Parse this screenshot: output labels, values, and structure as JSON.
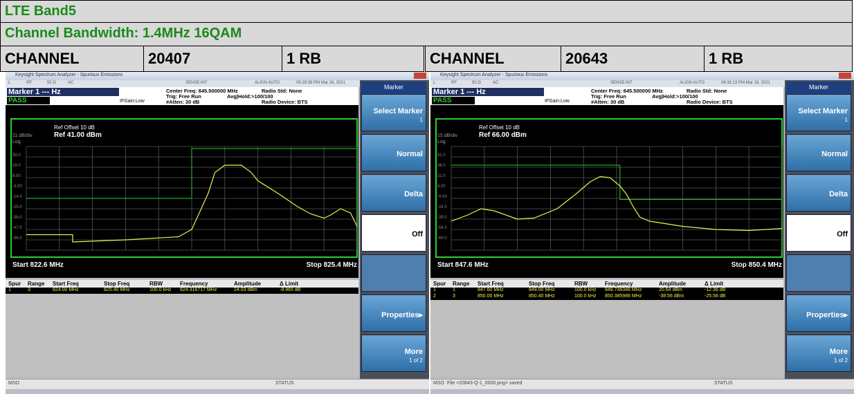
{
  "header": {
    "title": "LTE Band5",
    "subtitle": "Channel Bandwidth: 1.4MHz 16QAM",
    "cells": [
      "CHANNEL",
      "20407",
      "1 RB",
      "CHANNEL",
      "20643",
      "1 RB"
    ]
  },
  "panels": [
    {
      "window_title": "Keysight Spectrum Analyzer - Spurious Emissions",
      "toolbar": [
        "L",
        "RF",
        "50 Ω",
        "AC",
        "SENSE:INT",
        "ALIGN AUTO",
        "06:29:39 PM Mar 16, 2021"
      ],
      "marker": "Marker 1 --- Hz",
      "pass": "PASS",
      "ifgain": "IFGain:Low",
      "settings": [
        "Center Freq: 845.500000 MHz",
        "Trig: Free Run",
        "Avg|Hold:>100/100",
        "#Atten: 30 dB",
        "Radio Std: None",
        "Radio Device: BTS"
      ],
      "ref_offset": "Ref Offset 10 dB",
      "scale": "11 dB/div",
      "ref": "Ref 41.00 dBm",
      "log": "Log",
      "y_labels": [
        "30.0",
        "19.0",
        "8.00",
        "-3.00",
        "-14.0",
        "-25.0",
        "-36.0",
        "-47.0",
        "-58.0"
      ],
      "start": "Start 822.6 MHz",
      "stop": "Stop 825.4 MHz",
      "table": {
        "headers": [
          "Spur",
          "Range",
          "Start Freq",
          "Stop Freq",
          "RBW",
          "Frequency",
          "Amplitude",
          "Δ Limit"
        ],
        "rows": [
          [
            "1",
            "3",
            "824.00 MHz",
            "825.40 MHz",
            "100.0 kHz",
            "824.316717 MHz",
            "24.03 dBm",
            "-8.965 dB"
          ]
        ]
      },
      "softkeys": [
        "Marker",
        "Select Marker",
        "1",
        "Normal",
        "Delta",
        "Off",
        "Properties▸",
        "More",
        "1 of 2"
      ],
      "status": [
        "MSO",
        "STATUS"
      ]
    },
    {
      "window_title": "Keysight Spectrum Analyzer - Spurious Emissions",
      "toolbar": [
        "L",
        "RF",
        "50 Ω",
        "AC",
        "SENSE:INT",
        "ALIGN AUTO",
        "06:32:13 PM Mar 16, 2021"
      ],
      "marker": "Marker 1 --- Hz",
      "pass": "PASS",
      "ifgain": "IFGain:Low",
      "settings": [
        "Center Freq: 845.500000 MHz",
        "Trig: Free Run",
        "Avg|Hold:>100/100",
        "#Atten: 30 dB",
        "Radio Std: None",
        "Radio Device: BTS"
      ],
      "ref_offset": "Ref Offset 10 dB",
      "scale": "15 dB/div",
      "ref": "Ref 66.00 dBm",
      "log": "Log",
      "y_labels": [
        "51.0",
        "36.0",
        "21.0",
        "6.00",
        "-9.00",
        "-24.0",
        "-39.0",
        "-54.0",
        "-69.0"
      ],
      "start": "Start 847.6 MHz",
      "stop": "Stop 850.4 MHz",
      "table": {
        "headers": [
          "Spur",
          "Range",
          "Start Freq",
          "Stop Freq",
          "RBW",
          "Frequency",
          "Amplitude",
          "Δ Limit"
        ],
        "rows": [
          [
            "1",
            "1",
            "847.60 MHz",
            "849.00 MHz",
            "100.0 kHz",
            "848.746346 MHz",
            "20.64 dBm",
            "-12.36 dB"
          ],
          [
            "2",
            "3",
            "850.00 MHz",
            "850.40 MHz",
            "100.0 kHz",
            "850.385986 MHz",
            "-38.56 dBm",
            "-25.56 dB"
          ]
        ]
      },
      "softkeys": [
        "Marker",
        "Select Marker",
        "1",
        "Normal",
        "Delta",
        "Off",
        "Properties▸",
        "More",
        "1 of 2"
      ],
      "status": [
        "MSO",
        "File <20643-Q-1_0000.png> saved",
        "STATUS"
      ]
    }
  ]
}
